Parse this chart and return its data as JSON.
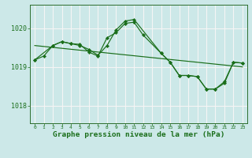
{
  "bg_color": "#cce8e8",
  "grid_color": "#f5f5f5",
  "line_color": "#1a6e1a",
  "xlabel": "Graphe pression niveau de la mer (hPa)",
  "yticks": [
    1018,
    1019,
    1020
  ],
  "xticks": [
    0,
    1,
    2,
    3,
    4,
    5,
    6,
    7,
    8,
    9,
    10,
    11,
    12,
    13,
    14,
    15,
    16,
    17,
    18,
    19,
    20,
    21,
    22,
    23
  ],
  "ylim": [
    1017.55,
    1020.6
  ],
  "xlim": [
    -0.5,
    23.5
  ],
  "trend_x": [
    0,
    23
  ],
  "trend_y": [
    1019.55,
    1019.0
  ],
  "series1_x": [
    0,
    1,
    2,
    3,
    4,
    5,
    6,
    7,
    8,
    9,
    10,
    11,
    12,
    14,
    15,
    16,
    17,
    18,
    19,
    20,
    21,
    22,
    23
  ],
  "series1_y": [
    1019.18,
    1019.28,
    1019.55,
    1019.65,
    1019.6,
    1019.58,
    1019.38,
    1019.28,
    1019.75,
    1019.88,
    1020.12,
    1020.15,
    1019.82,
    1019.35,
    1019.12,
    1018.78,
    1018.78,
    1018.75,
    1018.43,
    1018.43,
    1018.62,
    1019.12,
    1019.1
  ],
  "series2_x": [
    0,
    2,
    3,
    4,
    5,
    6,
    7,
    8,
    9,
    10,
    11,
    14,
    15,
    16,
    17,
    18,
    19,
    20,
    21,
    22,
    23
  ],
  "series2_y": [
    1019.18,
    1019.55,
    1019.65,
    1019.6,
    1019.55,
    1019.45,
    1019.3,
    1019.55,
    1019.95,
    1020.18,
    1020.22,
    1019.35,
    1019.12,
    1018.78,
    1018.78,
    1018.75,
    1018.43,
    1018.43,
    1018.58,
    1019.12,
    1019.1
  ]
}
